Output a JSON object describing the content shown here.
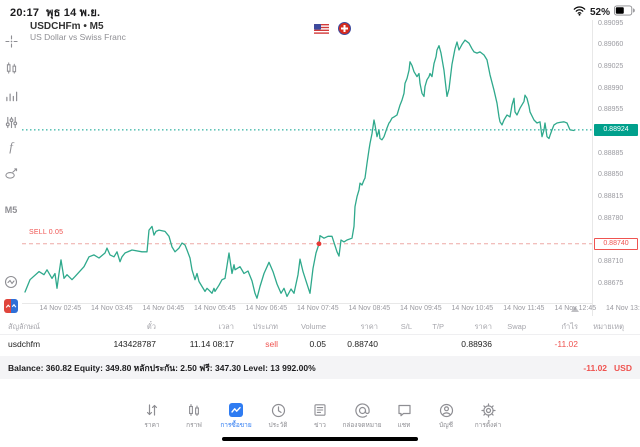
{
  "status_bar": {
    "time": "20:17",
    "date": "พุธ 14 พ.ย.",
    "battery_percent": "52%"
  },
  "chart_header": {
    "symbol_line": "USDCHFm • M5",
    "description": "US Dollar vs Swiss Franc"
  },
  "toolbar": {
    "timeframe_label": "M5"
  },
  "chart": {
    "sell_line_label": "SELL 0.05",
    "current_price_label": "0.88924",
    "position_price_label": "0.88740",
    "axis_labels": [
      "0.89095",
      "0.89060",
      "0.89025",
      "0.88990",
      "0.88955",
      "0.88885",
      "0.88850",
      "0.88815",
      "0.88780",
      "0.88710",
      "0.88675"
    ],
    "time_labels": [
      "14 Nov 02:45",
      "14 Nov 03:45",
      "14 Nov 04:45",
      "14 Nov 05:45",
      "14 Nov 06:45",
      "14 Nov 07:45",
      "14 Nov 08:45",
      "14 Nov 09:45",
      "14 Nov 10:45",
      "14 Nov 11:45",
      "14 Nov 12:45",
      "14 Nov 13:45"
    ]
  },
  "chart_data": {
    "type": "line",
    "symbol": "USDCHFm",
    "timeframe": "M5",
    "title": "US Dollar vs Swiss Franc",
    "ylim": [
      0.88675,
      0.89095
    ],
    "y_tick_step": 0.00035,
    "current_price": 0.88924,
    "position": {
      "type": "sell",
      "volume": 0.05,
      "open_price": 0.8874
    },
    "x_time_labels": [
      "14 Nov 02:45",
      "14 Nov 03:45",
      "14 Nov 04:45",
      "14 Nov 05:45",
      "14 Nov 06:45",
      "14 Nov 07:45",
      "14 Nov 08:45",
      "14 Nov 09:45",
      "14 Nov 10:45",
      "14 Nov 11:45",
      "14 Nov 12:45",
      "14 Nov 13:45"
    ],
    "entry_marker": {
      "x": 297,
      "price": 0.8874
    },
    "time_marker_x": 553,
    "points": [
      [
        3,
        0.88662
      ],
      [
        8,
        0.88682
      ],
      [
        17,
        0.88695
      ],
      [
        22,
        0.8869
      ],
      [
        25,
        0.88698
      ],
      [
        30,
        0.88684
      ],
      [
        33,
        0.88692
      ],
      [
        35,
        0.88668
      ],
      [
        37,
        0.88692
      ],
      [
        39,
        0.88714
      ],
      [
        42,
        0.88684
      ],
      [
        45,
        0.8869
      ],
      [
        50,
        0.88682
      ],
      [
        53,
        0.88687
      ],
      [
        62,
        0.88703
      ],
      [
        67,
        0.88719
      ],
      [
        72,
        0.88722
      ],
      [
        77,
        0.88717
      ],
      [
        83,
        0.88725
      ],
      [
        85,
        0.88733
      ],
      [
        88,
        0.88722
      ],
      [
        92,
        0.88719
      ],
      [
        95,
        0.88727
      ],
      [
        98,
        0.88711
      ],
      [
        100,
        0.88719
      ],
      [
        103,
        0.88725
      ],
      [
        110,
        0.8873
      ],
      [
        120,
        0.88727
      ],
      [
        125,
        0.88727
      ],
      [
        127,
        0.88762
      ],
      [
        130,
        0.88768
      ],
      [
        132,
        0.88754
      ],
      [
        134,
        0.8876
      ],
      [
        137,
        0.88762
      ],
      [
        143,
        0.8876
      ],
      [
        147,
        0.88752
      ],
      [
        150,
        0.88735
      ],
      [
        153,
        0.88727
      ],
      [
        157,
        0.88733
      ],
      [
        160,
        0.88741
      ],
      [
        163,
        0.88738
      ],
      [
        165,
        0.8873
      ],
      [
        168,
        0.88717
      ],
      [
        170,
        0.88698
      ],
      [
        173,
        0.88682
      ],
      [
        175,
        0.88692
      ],
      [
        177,
        0.88679
      ],
      [
        180,
        0.88671
      ],
      [
        183,
        0.88663
      ],
      [
        185,
        0.88668
      ],
      [
        187,
        0.88665
      ],
      [
        190,
        0.8866
      ],
      [
        192,
        0.88668
      ],
      [
        193,
        0.88663
      ],
      [
        197,
        0.88673
      ],
      [
        200,
        0.88682
      ],
      [
        203,
        0.88684
      ],
      [
        207,
        0.88725
      ],
      [
        208,
        0.88714
      ],
      [
        210,
        0.88692
      ],
      [
        212,
        0.88706
      ],
      [
        213,
        0.88698
      ],
      [
        218,
        0.88703
      ],
      [
        222,
        0.88692
      ],
      [
        226,
        0.88696
      ],
      [
        230,
        0.8868
      ],
      [
        233,
        0.8866
      ],
      [
        235,
        0.88652
      ],
      [
        238,
        0.88671
      ],
      [
        242,
        0.88692
      ],
      [
        247,
        0.8871
      ],
      [
        251,
        0.88695
      ],
      [
        255,
        0.88675
      ],
      [
        259,
        0.8866
      ],
      [
        262,
        0.88668
      ],
      [
        265,
        0.88655
      ],
      [
        269,
        0.88667
      ],
      [
        272,
        0.8866
      ],
      [
        276,
        0.8869
      ],
      [
        278,
        0.88715
      ],
      [
        281,
        0.88695
      ],
      [
        284,
        0.8868
      ],
      [
        288,
        0.8866
      ],
      [
        291,
        0.887
      ],
      [
        294,
        0.88725
      ],
      [
        297,
        0.8874
      ],
      [
        298,
        0.88753
      ],
      [
        302,
        0.88749
      ],
      [
        306,
        0.88752
      ],
      [
        310,
        0.88752
      ],
      [
        315,
        0.88727
      ],
      [
        317,
        0.8872
      ],
      [
        319,
        0.88746
      ],
      [
        322,
        0.88743
      ],
      [
        325,
        0.88746
      ],
      [
        330,
        0.88749
      ],
      [
        332,
        0.88768
      ],
      [
        333,
        0.888
      ],
      [
        335,
        0.88816
      ],
      [
        337,
        0.88827
      ],
      [
        338,
        0.88838
      ],
      [
        340,
        0.88835
      ],
      [
        342,
        0.88843
      ],
      [
        343,
        0.88846
      ],
      [
        345,
        0.8887
      ],
      [
        347,
        0.88892
      ],
      [
        348,
        0.88902
      ],
      [
        350,
        0.88918
      ],
      [
        352,
        0.8894
      ],
      [
        353,
        0.88932
      ],
      [
        355,
        0.88913
      ],
      [
        357,
        0.88924
      ],
      [
        358,
        0.8891
      ],
      [
        360,
        0.88908
      ],
      [
        362,
        0.88913
      ],
      [
        365,
        0.88927
      ],
      [
        367,
        0.88935
      ],
      [
        368,
        0.88937
      ],
      [
        370,
        0.88943
      ],
      [
        372,
        0.88945
      ],
      [
        375,
        0.88948
      ],
      [
        378,
        0.88964
      ],
      [
        380,
        0.88972
      ],
      [
        382,
        0.88983
      ],
      [
        383,
        0.88999
      ],
      [
        385,
        0.89007
      ],
      [
        387,
        0.8902
      ],
      [
        388,
        0.89034
      ],
      [
        390,
        0.89028
      ],
      [
        392,
        0.89018
      ],
      [
        395,
        0.8901
      ],
      [
        397,
        0.89015
      ],
      [
        398,
        0.88999
      ],
      [
        400,
        0.88983
      ],
      [
        402,
        0.88978
      ],
      [
        403,
        0.88994
      ],
      [
        405,
        0.89005
      ],
      [
        407,
        0.8901
      ],
      [
        408,
        0.89015
      ],
      [
        410,
        0.8901
      ],
      [
        412,
        0.89031
      ],
      [
        414,
        0.89042
      ],
      [
        415,
        0.89053
      ],
      [
        417,
        0.8906
      ],
      [
        419,
        0.89048
      ],
      [
        422,
        0.8902
      ],
      [
        425,
        0.88978
      ],
      [
        427,
        0.8899
      ],
      [
        430,
        0.8903
      ],
      [
        433,
        0.89055
      ],
      [
        435,
        0.89066
      ],
      [
        437,
        0.89053
      ],
      [
        440,
        0.89062
      ],
      [
        443,
        0.89069
      ],
      [
        447,
        0.89064
      ],
      [
        450,
        0.89055
      ],
      [
        452,
        0.8905
      ],
      [
        455,
        0.89048
      ],
      [
        458,
        0.8905
      ],
      [
        462,
        0.89045
      ],
      [
        465,
        0.89037
      ],
      [
        468,
        0.89013
      ],
      [
        472,
        0.88988
      ],
      [
        475,
        0.88967
      ],
      [
        477,
        0.88945
      ],
      [
        478,
        0.88937
      ],
      [
        480,
        0.88932
      ],
      [
        482,
        0.8894
      ],
      [
        485,
        0.88948
      ],
      [
        488,
        0.88945
      ],
      [
        490,
        0.88964
      ],
      [
        492,
        0.88975
      ],
      [
        493,
        0.88953
      ],
      [
        495,
        0.88948
      ],
      [
        498,
        0.88959
      ],
      [
        502,
        0.8897
      ],
      [
        503,
        0.8898
      ],
      [
        505,
        0.88975
      ],
      [
        507,
        0.88962
      ],
      [
        508,
        0.88953
      ],
      [
        512,
        0.8894
      ],
      [
        515,
        0.88935
      ],
      [
        518,
        0.88937
      ],
      [
        520,
        0.88913
      ],
      [
        522,
        0.88924
      ],
      [
        523,
        0.88935
      ],
      [
        525,
        0.88913
      ],
      [
        527,
        0.8891
      ],
      [
        528,
        0.88915
      ],
      [
        530,
        0.88924
      ],
      [
        532,
        0.88932
      ],
      [
        535,
        0.88935
      ],
      [
        538,
        0.88936
      ],
      [
        542,
        0.88937
      ],
      [
        545,
        0.88935
      ],
      [
        548,
        0.88924
      ],
      [
        552,
        0.88923
      ]
    ]
  },
  "positions_table": {
    "headers": [
      "สัญลักษณ์",
      "ตั๋ว",
      "เวลา",
      "ประเภท",
      "Volume",
      "ราคา",
      "S/L",
      "T/P",
      "ราคา",
      "Swap",
      "กำไร",
      "หมายเหตุ"
    ],
    "row": [
      "usdchfm",
      "143428787",
      "11.14 08:17",
      "sell",
      "0.05",
      "0.88740",
      "",
      "",
      "0.88936",
      "",
      "-11.02",
      ""
    ]
  },
  "account_bar": {
    "summary": "Balance: 360.82 Equity: 349.80 หลักประกัน: 2.50 ฟรี: 347.30 Level: 13 992.00%",
    "profit": "-11.02",
    "currency": "USD"
  },
  "tab_bar": {
    "active_index": 2,
    "tabs": [
      {
        "label": "ราคา",
        "icon": "quotes-icon"
      },
      {
        "label": "กราฟ",
        "icon": "chart-icon"
      },
      {
        "label": "การซื้อขาย",
        "icon": "trade-icon"
      },
      {
        "label": "ประวัติ",
        "icon": "history-icon"
      },
      {
        "label": "ข่าว",
        "icon": "news-icon"
      },
      {
        "label": "กล่องจดหมาย",
        "icon": "mailbox-icon"
      },
      {
        "label": "แชท",
        "icon": "chat-icon"
      },
      {
        "label": "บัญชี",
        "icon": "accounts-icon"
      },
      {
        "label": "การตั้งค่า",
        "icon": "settings-icon"
      }
    ]
  },
  "colors": {
    "line": "#2fa98c",
    "current_price_bg": "#00a08c",
    "sell_red": "#ef5350",
    "active_tab": "#2f7cf2"
  }
}
